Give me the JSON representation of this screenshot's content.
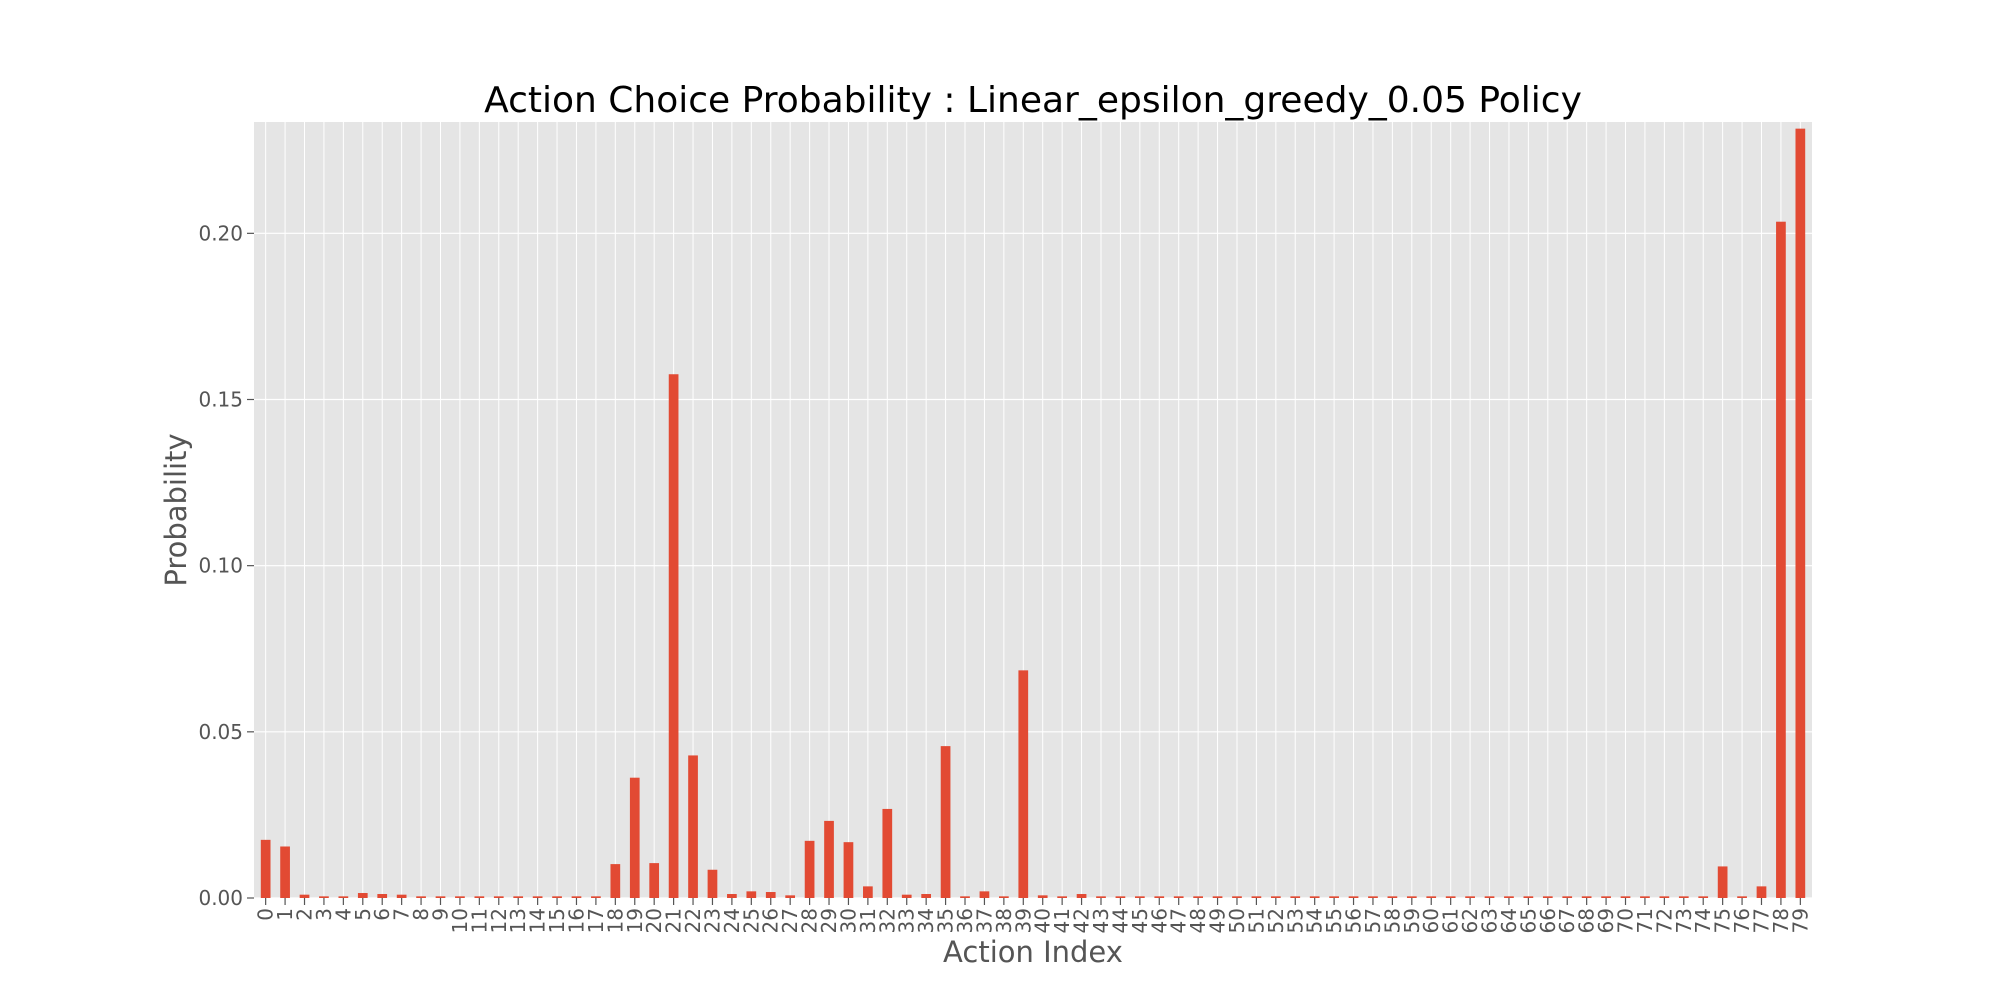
{
  "chart_data": {
    "type": "bar",
    "title": "Action Choice Probability : Linear_epsilon_greedy_0.05 Policy",
    "xlabel": "Action Index",
    "ylabel": "Probability",
    "ylim": [
      0,
      0.2335
    ],
    "yticks": [
      0.0,
      0.05,
      0.1,
      0.15,
      0.2
    ],
    "ytick_labels": [
      "0.00",
      "0.05",
      "0.10",
      "0.15",
      "0.20"
    ],
    "grid": true,
    "categories": [
      "0",
      "1",
      "2",
      "3",
      "4",
      "5",
      "6",
      "7",
      "8",
      "9",
      "10",
      "11",
      "12",
      "13",
      "14",
      "15",
      "16",
      "17",
      "18",
      "19",
      "20",
      "21",
      "22",
      "23",
      "24",
      "25",
      "26",
      "27",
      "28",
      "29",
      "30",
      "31",
      "32",
      "33",
      "34",
      "35",
      "36",
      "37",
      "38",
      "39",
      "40",
      "41",
      "42",
      "43",
      "44",
      "45",
      "46",
      "47",
      "48",
      "49",
      "50",
      "51",
      "52",
      "53",
      "54",
      "55",
      "56",
      "57",
      "58",
      "59",
      "60",
      "61",
      "62",
      "63",
      "64",
      "65",
      "66",
      "67",
      "68",
      "69",
      "70",
      "71",
      "72",
      "73",
      "74",
      "75",
      "76",
      "77",
      "78",
      "79"
    ],
    "values": [
      0.0175,
      0.0155,
      0.001,
      0.0005,
      0.0005,
      0.0015,
      0.0012,
      0.001,
      0.0005,
      0.0005,
      0.0005,
      0.0005,
      0.0005,
      0.0005,
      0.0005,
      0.0005,
      0.0005,
      0.0005,
      0.0102,
      0.0362,
      0.0105,
      0.1576,
      0.0429,
      0.0085,
      0.0012,
      0.002,
      0.0018,
      0.0008,
      0.0172,
      0.0232,
      0.0168,
      0.0035,
      0.0268,
      0.001,
      0.0012,
      0.0457,
      0.0005,
      0.002,
      0.0005,
      0.0685,
      0.0008,
      0.0005,
      0.0012,
      0.0005,
      0.0005,
      0.0005,
      0.0005,
      0.0005,
      0.0005,
      0.0005,
      0.0005,
      0.0005,
      0.0005,
      0.0005,
      0.0005,
      0.0005,
      0.0005,
      0.0005,
      0.0005,
      0.0005,
      0.0005,
      0.0005,
      0.0005,
      0.0005,
      0.0005,
      0.0005,
      0.0005,
      0.0005,
      0.0005,
      0.0005,
      0.0005,
      0.0005,
      0.0005,
      0.0005,
      0.0005,
      0.0095,
      0.0005,
      0.0035,
      0.2035,
      0.2315
    ]
  },
  "colors": {
    "bar": "#E24A33",
    "plot_background": "#E5E5E5",
    "grid": "#FFFFFF",
    "text": "#555555",
    "title": "#000000"
  }
}
